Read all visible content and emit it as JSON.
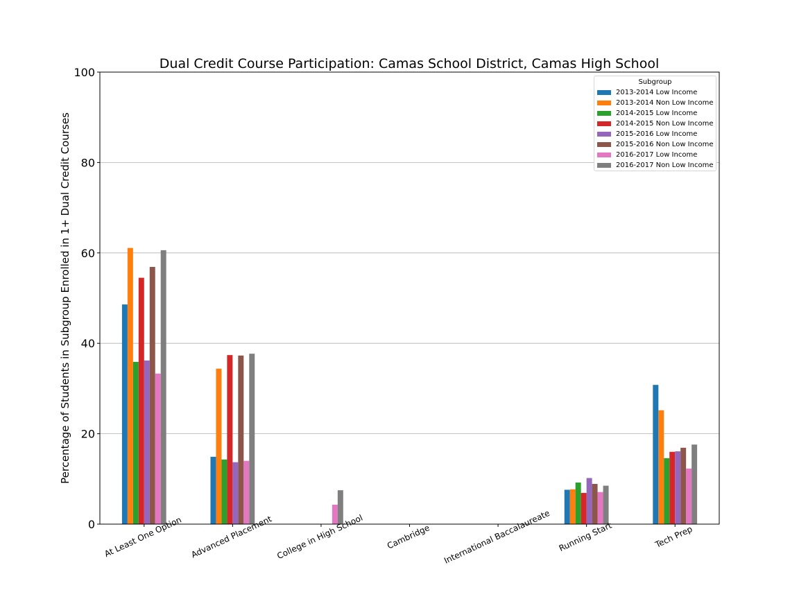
{
  "chart_data": {
    "type": "bar",
    "title": "Dual Credit Course Participation: Camas School District, Camas High School",
    "xlabel": "",
    "ylabel": "Percentage of Students in Subgroup Enrolled in 1+ Dual Credit Courses",
    "ylim": [
      0,
      100
    ],
    "yticks": [
      0,
      20,
      40,
      60,
      80,
      100
    ],
    "grid": "y",
    "legend_title": "Subgroup",
    "legend_position": "top-right",
    "categories": [
      "At Least One Option",
      "Advanced Placement",
      "College in High School",
      "Cambridge",
      "International Baccalaureate",
      "Running Start",
      "Tech Prep"
    ],
    "series": [
      {
        "name": "2013-2014 Low Income",
        "color": "#1f77b4",
        "values": [
          48.6,
          14.9,
          0,
          0,
          0,
          7.6,
          30.8
        ]
      },
      {
        "name": "2013-2014 Non Low Income",
        "color": "#ff7f0e",
        "values": [
          61.1,
          34.4,
          0,
          0,
          0,
          7.7,
          25.2
        ]
      },
      {
        "name": "2014-2015 Low Income",
        "color": "#2ca02c",
        "values": [
          35.9,
          14.3,
          0,
          0,
          0,
          9.2,
          14.6
        ]
      },
      {
        "name": "2014-2015 Non Low Income",
        "color": "#d62728",
        "values": [
          54.5,
          37.4,
          0,
          0,
          0,
          6.9,
          16.0
        ]
      },
      {
        "name": "2015-2016 Low Income",
        "color": "#9467bd",
        "values": [
          36.2,
          13.7,
          0,
          0,
          0,
          10.2,
          16.1
        ]
      },
      {
        "name": "2015-2016 Non Low Income",
        "color": "#8c564b",
        "values": [
          56.9,
          37.3,
          0,
          0,
          0,
          8.9,
          16.9
        ]
      },
      {
        "name": "2016-2017 Low Income",
        "color": "#e377c2",
        "values": [
          33.3,
          14.0,
          4.3,
          0,
          0,
          7.1,
          12.3
        ]
      },
      {
        "name": "2016-2017 Non Low Income",
        "color": "#7f7f7f",
        "values": [
          60.6,
          37.7,
          7.5,
          0,
          0,
          8.5,
          17.6
        ]
      }
    ]
  }
}
